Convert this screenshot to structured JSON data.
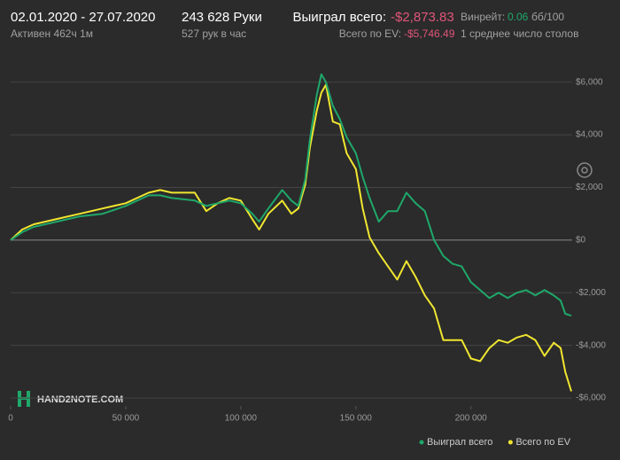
{
  "header": {
    "period": "02.01.2020 - 27.07.2020",
    "active": "Активен 462ч 1м",
    "hands": "243 628 Руки",
    "hands_per_hour": "527 рук в час",
    "won_label": "Выиграл всего:",
    "won_value": "-$2,873.83",
    "ev_label": "Всего по EV:",
    "ev_value": "-$5,746.49",
    "winrate_label": "Винрейт:",
    "winrate_value": "0.06",
    "winrate_unit": "бб/100",
    "tables": "1 среднее число столов"
  },
  "logo": "HAND2NOTE.COM",
  "chart_data": {
    "type": "line",
    "x": [
      0,
      5000,
      10000,
      20000,
      30000,
      40000,
      50000,
      60000,
      65000,
      70000,
      80000,
      85000,
      90000,
      95000,
      100000,
      105000,
      108000,
      112000,
      118000,
      122000,
      125000,
      128000,
      130000,
      133000,
      135000,
      137000,
      140000,
      143000,
      146000,
      150000,
      153000,
      156000,
      160000,
      164000,
      168000,
      172000,
      176000,
      180000,
      184000,
      188000,
      192000,
      196000,
      200000,
      204000,
      208000,
      212000,
      216000,
      220000,
      224000,
      228000,
      232000,
      236000,
      239000,
      241000,
      243628
    ],
    "series": [
      {
        "name": "Выиграл всего",
        "color": "#1fa86a",
        "values": [
          0,
          300,
          500,
          700,
          900,
          1000,
          1300,
          1700,
          1700,
          1600,
          1500,
          1300,
          1400,
          1500,
          1400,
          1000,
          700,
          1200,
          1900,
          1500,
          1300,
          2300,
          3800,
          5500,
          6300,
          6000,
          5100,
          4600,
          3900,
          3300,
          2400,
          1600,
          700,
          1100,
          1100,
          1800,
          1400,
          1100,
          0,
          -600,
          -900,
          -1000,
          -1600,
          -1900,
          -2200,
          -2000,
          -2200,
          -2000,
          -1900,
          -2100,
          -1900,
          -2100,
          -2300,
          -2800,
          -2874
        ]
      },
      {
        "name": "Всего по EV",
        "color": "#f0e630",
        "values": [
          0,
          400,
          600,
          800,
          1000,
          1200,
          1400,
          1800,
          1900,
          1800,
          1800,
          1100,
          1400,
          1600,
          1500,
          800,
          400,
          1000,
          1500,
          1000,
          1200,
          2100,
          3500,
          4900,
          5600,
          5900,
          4500,
          4400,
          3300,
          2700,
          1200,
          100,
          -500,
          -1000,
          -1500,
          -800,
          -1400,
          -2100,
          -2600,
          -3800,
          -3800,
          -3800,
          -4500,
          -4600,
          -4100,
          -3800,
          -3900,
          -3700,
          -3600,
          -3800,
          -4400,
          -3900,
          -4100,
          -5000,
          -5746
        ]
      }
    ],
    "xlim": [
      0,
      244000
    ],
    "xticks": [
      0,
      {
        "value": 50000,
        "label": "50 000"
      },
      {
        "value": 100000,
        "label": "100 000"
      },
      {
        "value": 150000,
        "label": "150 000"
      },
      {
        "value": 200000,
        "label": "200 000"
      }
    ],
    "ylim": [
      -6300,
      7100
    ],
    "yticks": [
      {
        "value": -6000,
        "label": "-$6,000"
      },
      {
        "value": -4000,
        "label": "-$4,000"
      },
      {
        "value": -2000,
        "label": "-$2,000"
      },
      {
        "value": 0,
        "label": "$0"
      },
      {
        "value": 2000,
        "label": "$2,000"
      },
      {
        "value": 4000,
        "label": "$4,000"
      },
      {
        "value": 6000,
        "label": "$6,000"
      }
    ],
    "grid": true,
    "legend": "bottom-right"
  }
}
